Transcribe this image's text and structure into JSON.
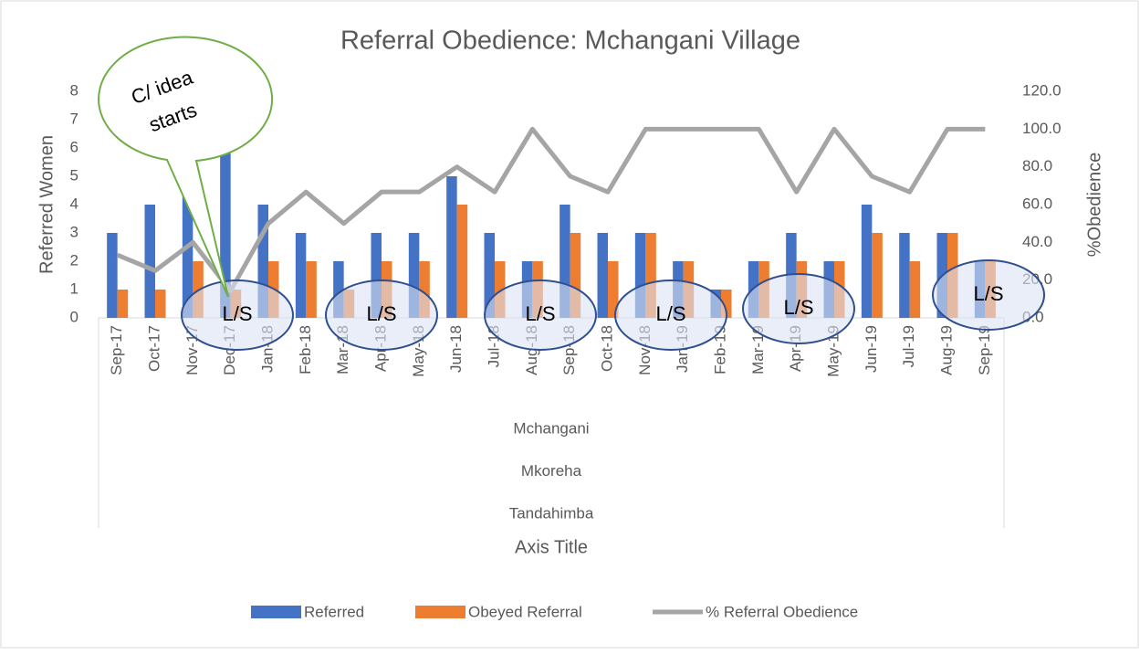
{
  "chart_data": {
    "type": "bar",
    "title": "Referral Obedience: Mchangani Village",
    "categories": [
      "Sep-17",
      "Oct-17",
      "Nov-17",
      "Dec-17",
      "Jan-18",
      "Feb-18",
      "Mar-18",
      "Apr-18",
      "May-18",
      "Jun-18",
      "Jul-18",
      "Aug-18",
      "Sep-18",
      "Oct-18",
      "Nov-18",
      "Jan-19",
      "Feb-19",
      "Mar-19",
      "Apr-19",
      "May-19",
      "Jun-19",
      "Jul-19",
      "Aug-19",
      "Sep-19"
    ],
    "category_groups": [
      "Mchangani",
      "Mkoreha",
      "Tandahimba"
    ],
    "x_label": "Axis Title",
    "y_label": "Referred Women",
    "y2_label": "%Obedience",
    "series": [
      {
        "name": "Referred",
        "color": "#4472c4",
        "type": "bar",
        "values": [
          3,
          4,
          5,
          7,
          4,
          3,
          2,
          3,
          3,
          5,
          3,
          2,
          4,
          3,
          3,
          2,
          1,
          2,
          3,
          2,
          4,
          3,
          3,
          2
        ]
      },
      {
        "name": "Obeyed Referral",
        "color": "#ed7d31",
        "type": "bar",
        "values": [
          1,
          1,
          2,
          1,
          2,
          2,
          1,
          2,
          2,
          4,
          2,
          2,
          3,
          2,
          3,
          2,
          1,
          2,
          2,
          2,
          3,
          2,
          3,
          2
        ]
      },
      {
        "name": "% Referral Obedience",
        "color": "#a5a5a5",
        "type": "line",
        "axis": "y2",
        "values": [
          33.3,
          25,
          40,
          14.3,
          50,
          66.7,
          50,
          66.7,
          66.7,
          80,
          66.7,
          100,
          75,
          66.7,
          100,
          100,
          100,
          100,
          66.7,
          100,
          75,
          66.7,
          100,
          100
        ]
      }
    ],
    "ylim": [
      0,
      8
    ],
    "yticks": [
      0,
      1,
      2,
      3,
      4,
      5,
      6,
      7,
      8
    ],
    "y2lim": [
      0,
      120
    ],
    "y2ticks": [
      {
        "value": 0,
        "label": "0.0"
      },
      {
        "value": 20,
        "label": "20.0"
      },
      {
        "value": 40,
        "label": "40.0"
      },
      {
        "value": 60,
        "label": "60.0"
      },
      {
        "value": 80,
        "label": "80.0"
      },
      {
        "value": 100,
        "label": "100.0"
      },
      {
        "value": 120,
        "label": "120.0"
      }
    ],
    "grid": false,
    "legend": "bottom",
    "callout": [
      "C/ idea",
      "starts"
    ],
    "annotations": [
      "L/S",
      "L/S",
      "L/S",
      "L/S",
      "L/S",
      "L/S"
    ]
  }
}
